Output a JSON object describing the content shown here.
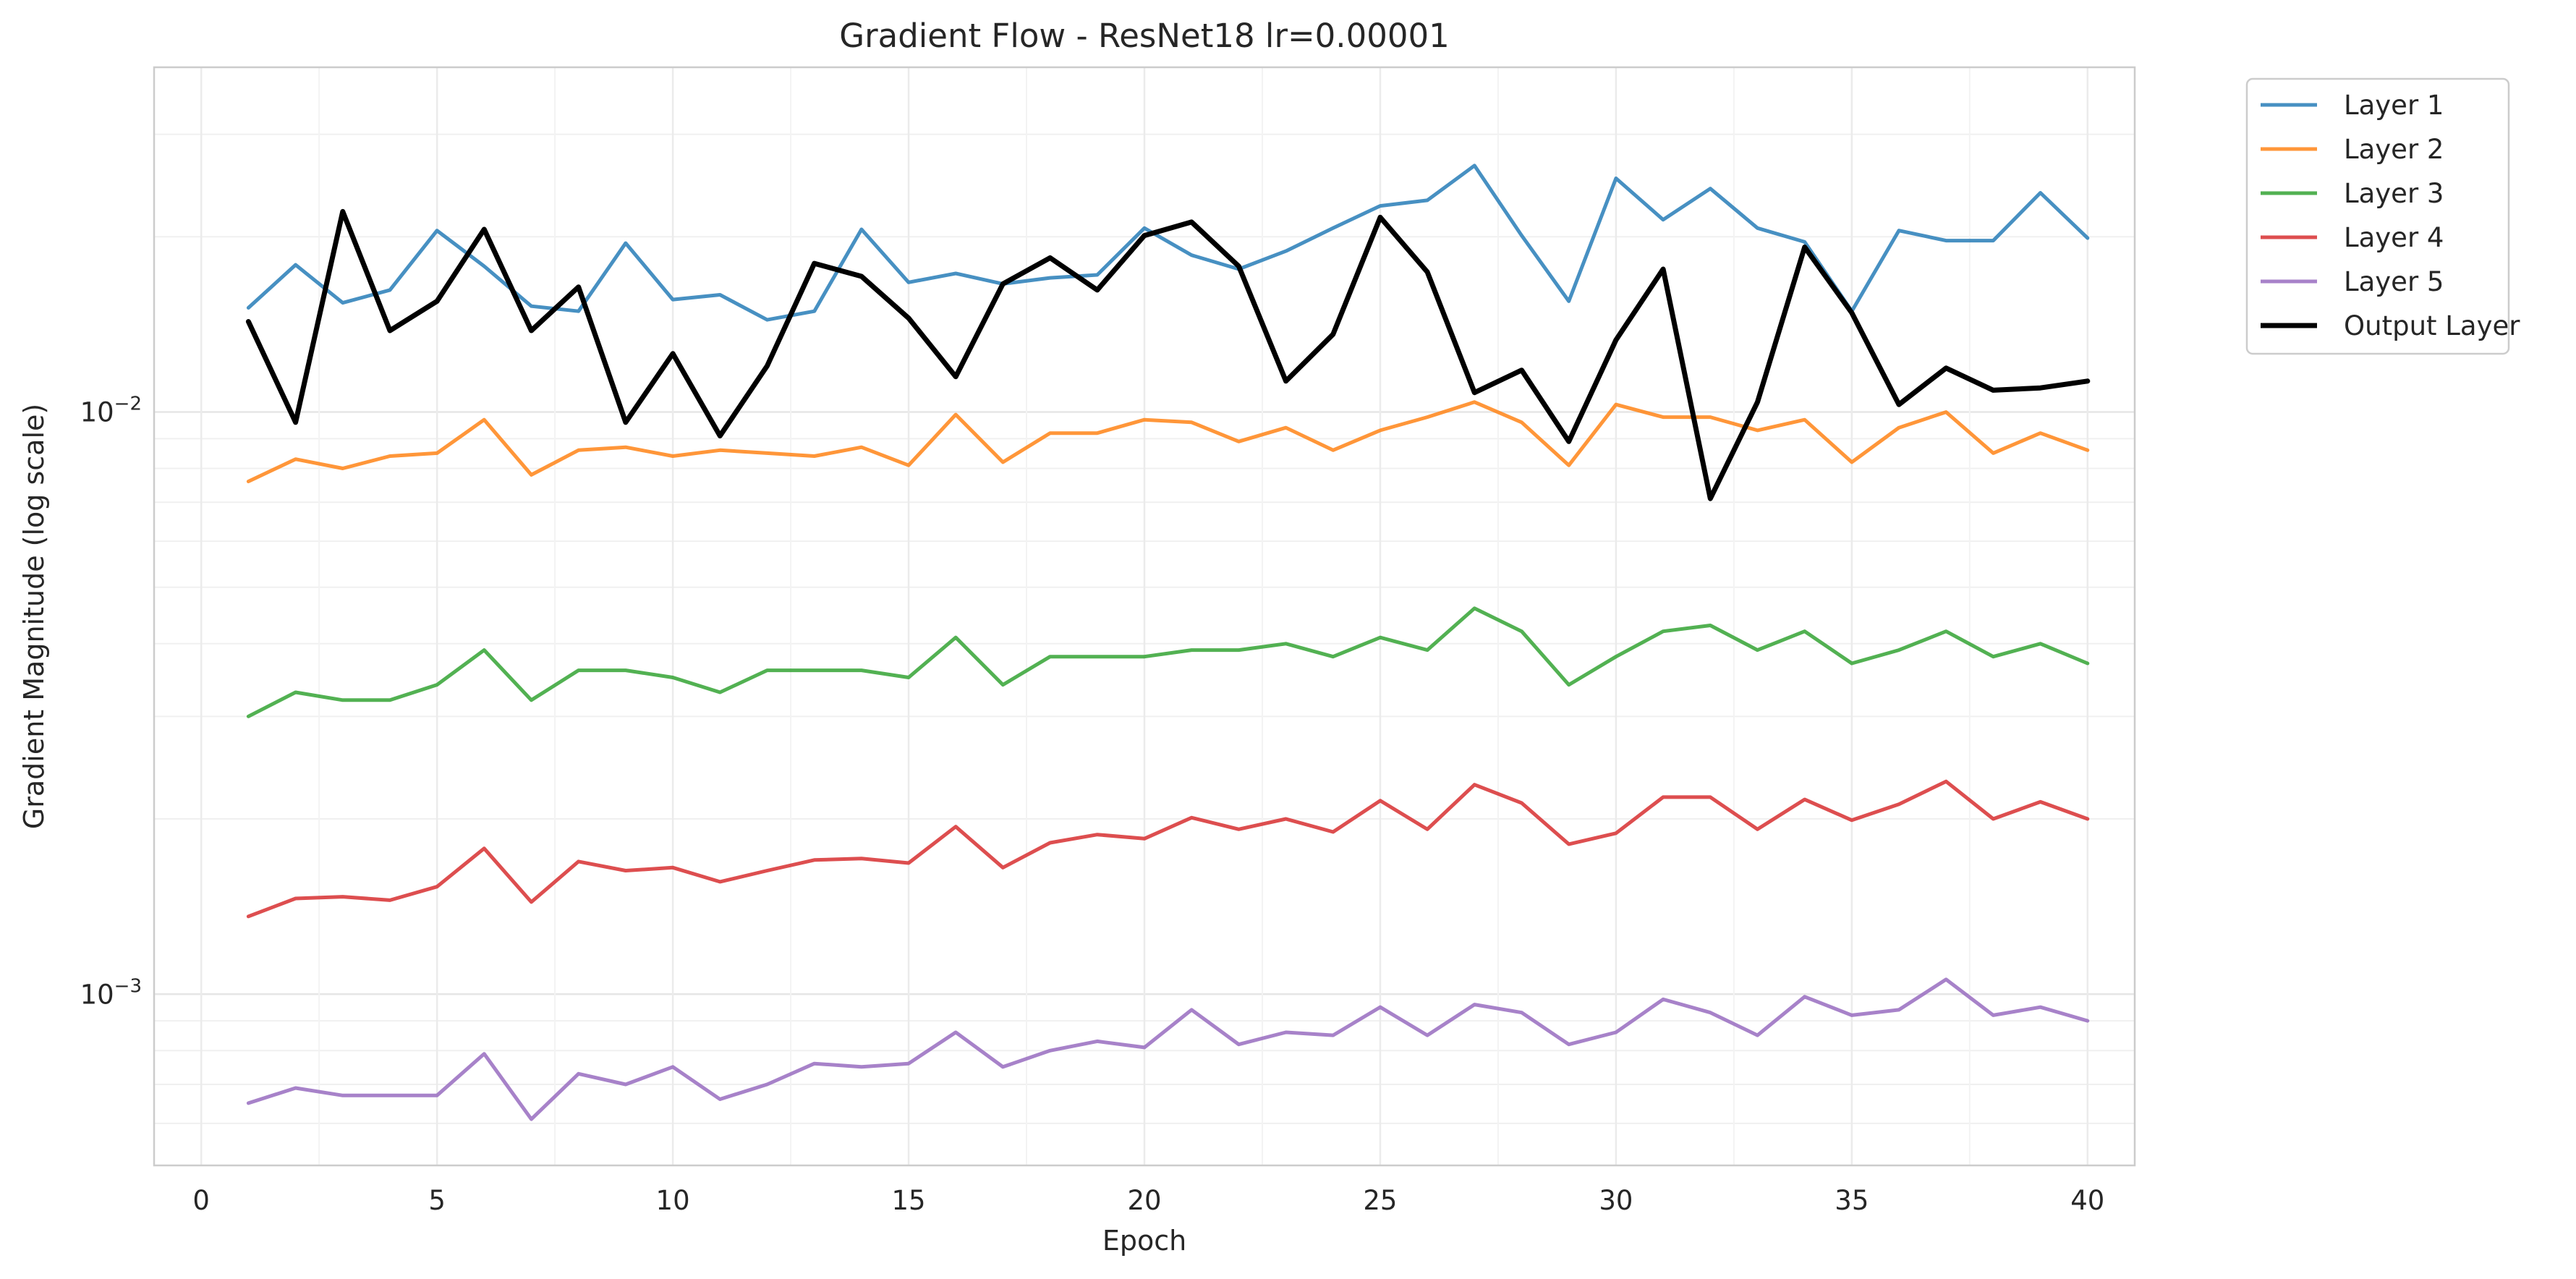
{
  "chart_data": {
    "type": "line",
    "title": "Gradient Flow - ResNet18 lr=0.00001",
    "xlabel": "Epoch",
    "ylabel": "Gradient Magnitude (log scale)",
    "y_scale": "log",
    "xlim": [
      -1,
      41
    ],
    "ylim": [
      0.000508,
      0.0391
    ],
    "grid": true,
    "legend_position": "outside-top-right",
    "x_ticks": [
      0,
      5,
      10,
      15,
      20,
      25,
      30,
      35,
      40
    ],
    "x_tick_labels": [
      "0",
      "5",
      "10",
      "15",
      "20",
      "25",
      "30",
      "35",
      "40"
    ],
    "y_major_ticks": [
      0.001,
      0.01
    ],
    "y_tick_labels": [
      {
        "base": "10",
        "exp": "−3"
      },
      {
        "base": "10",
        "exp": "−2"
      }
    ],
    "x": [
      1,
      2,
      3,
      4,
      5,
      6,
      7,
      8,
      9,
      10,
      11,
      12,
      13,
      14,
      15,
      16,
      17,
      18,
      19,
      20,
      21,
      22,
      23,
      24,
      25,
      26,
      27,
      28,
      29,
      30,
      31,
      32,
      33,
      34,
      35,
      36,
      37,
      38,
      39,
      40
    ],
    "series": [
      {
        "name": "Layer 1",
        "color": "#1f77b4",
        "width": 5,
        "values": [
          0.0151,
          0.0179,
          0.0154,
          0.0162,
          0.0205,
          0.0178,
          0.0152,
          0.0149,
          0.0195,
          0.0156,
          0.0159,
          0.0144,
          0.0149,
          0.0206,
          0.0167,
          0.0173,
          0.0166,
          0.017,
          0.0172,
          0.0207,
          0.0186,
          0.0176,
          0.0189,
          0.0207,
          0.0226,
          0.0231,
          0.0265,
          0.0201,
          0.0155,
          0.0252,
          0.0214,
          0.0242,
          0.0207,
          0.0196,
          0.0149,
          0.0205,
          0.0197,
          0.0197,
          0.0238,
          0.0199
        ]
      },
      {
        "name": "Layer 2",
        "color": "#ff7f0e",
        "width": 5,
        "values": [
          0.0076,
          0.0083,
          0.008,
          0.0084,
          0.0085,
          0.0097,
          0.0078,
          0.0086,
          0.0087,
          0.0084,
          0.0086,
          0.0085,
          0.0084,
          0.0087,
          0.0081,
          0.0099,
          0.0082,
          0.0092,
          0.0092,
          0.0097,
          0.0096,
          0.0089,
          0.0094,
          0.0086,
          0.0093,
          0.0098,
          0.0104,
          0.0096,
          0.0081,
          0.0103,
          0.0098,
          0.0098,
          0.0093,
          0.0097,
          0.0082,
          0.0094,
          0.01,
          0.0085,
          0.0092,
          0.0086
        ]
      },
      {
        "name": "Layer 3",
        "color": "#2ca02c",
        "width": 5,
        "values": [
          0.003,
          0.0033,
          0.0032,
          0.0032,
          0.0034,
          0.0039,
          0.0032,
          0.0036,
          0.0036,
          0.0035,
          0.0033,
          0.0036,
          0.0036,
          0.0036,
          0.0035,
          0.0041,
          0.0034,
          0.0038,
          0.0038,
          0.0038,
          0.0039,
          0.0039,
          0.004,
          0.0038,
          0.0041,
          0.0039,
          0.0046,
          0.0042,
          0.0034,
          0.0038,
          0.0042,
          0.0043,
          0.0039,
          0.0042,
          0.0037,
          0.0039,
          0.0042,
          0.0038,
          0.004,
          0.0037
        ]
      },
      {
        "name": "Layer 4",
        "color": "#d62728",
        "width": 5,
        "values": [
          0.00136,
          0.00146,
          0.00147,
          0.00145,
          0.00153,
          0.00178,
          0.00144,
          0.00169,
          0.00163,
          0.00165,
          0.00156,
          0.00163,
          0.0017,
          0.00171,
          0.00168,
          0.00194,
          0.00165,
          0.00182,
          0.00188,
          0.00185,
          0.00201,
          0.00192,
          0.002,
          0.0019,
          0.00215,
          0.00192,
          0.00229,
          0.00213,
          0.00181,
          0.00189,
          0.00218,
          0.00218,
          0.00192,
          0.00216,
          0.00199,
          0.00212,
          0.00232,
          0.002,
          0.00214,
          0.002
        ]
      },
      {
        "name": "Layer 5",
        "color": "#9467bd",
        "width": 5,
        "values": [
          0.00065,
          0.00069,
          0.00067,
          0.00067,
          0.00067,
          0.00079,
          0.00061,
          0.00073,
          0.0007,
          0.00075,
          0.00066,
          0.0007,
          0.00076,
          0.00075,
          0.00076,
          0.00086,
          0.00075,
          0.0008,
          0.00083,
          0.00081,
          0.00094,
          0.00082,
          0.00086,
          0.00085,
          0.00095,
          0.00085,
          0.00096,
          0.00093,
          0.00082,
          0.00086,
          0.00098,
          0.00093,
          0.00085,
          0.00099,
          0.00092,
          0.00094,
          0.00106,
          0.00092,
          0.00095,
          0.0009
        ]
      },
      {
        "name": "Output Layer",
        "color": "#000000",
        "width": 7,
        "values": [
          0.0143,
          0.0096,
          0.0221,
          0.0138,
          0.0155,
          0.0206,
          0.0138,
          0.0164,
          0.0096,
          0.0126,
          0.0091,
          0.012,
          0.018,
          0.0171,
          0.0145,
          0.0115,
          0.0166,
          0.0184,
          0.0162,
          0.0201,
          0.0212,
          0.0178,
          0.0113,
          0.0136,
          0.0216,
          0.0174,
          0.0108,
          0.0118,
          0.0089,
          0.0133,
          0.0176,
          0.0071,
          0.0104,
          0.0192,
          0.0148,
          0.0103,
          0.0119,
          0.0109,
          0.011,
          0.0113
        ]
      }
    ]
  }
}
